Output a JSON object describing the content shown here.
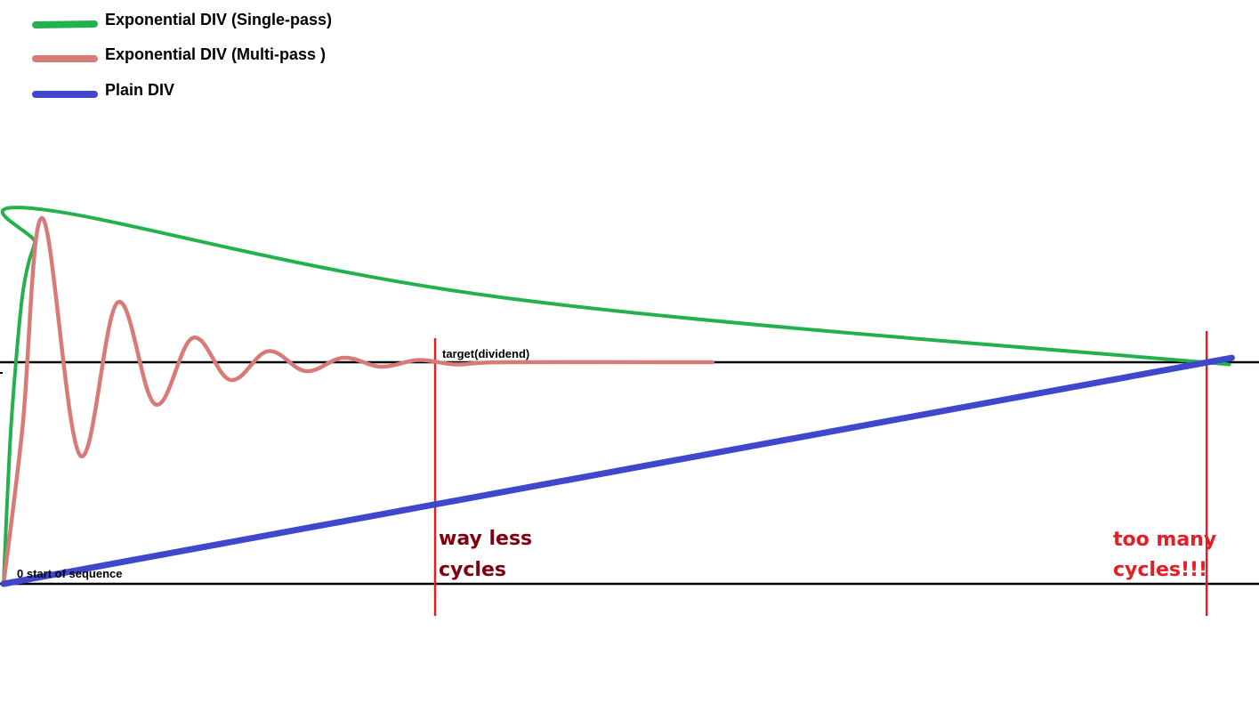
{
  "chart_data": {
    "type": "line",
    "title": "",
    "xlabel": "",
    "ylabel": "",
    "grid": false,
    "legend_position": "top-left",
    "xlim": [
      0,
      100
    ],
    "ylim": [
      0,
      1.6
    ],
    "colors": {
      "single_pass": "#22b14c",
      "multi_pass": "#d87a78",
      "plain": "#3f48cc",
      "axis": "#000000",
      "marker": "#e02020",
      "annotation_left": "#800010",
      "annotation_right": "#e81c24"
    },
    "series": [
      {
        "name": "Exponential DIV (Single-pass)",
        "key": "single_pass",
        "x": [
          0,
          0.5,
          1,
          1.5,
          2,
          2.5,
          3,
          40,
          97.7
        ],
        "y": [
          0.0,
          0.62,
          1.01,
          1.3,
          1.45,
          1.54,
          1.69,
          1.29,
          0.99
        ]
      },
      {
        "name": "Exponential DIV (Multi-pass  )",
        "key": "multi_pass",
        "x": [
          0,
          1.5,
          3.1,
          6.1,
          9.1,
          12.1,
          15.1,
          18.1,
          21.1,
          24.1,
          27.1,
          30.1,
          33.1,
          36.1,
          40.0,
          56.5
        ],
        "y": [
          0.0,
          0.7,
          1.65,
          0.58,
          1.27,
          0.81,
          1.11,
          0.92,
          1.05,
          0.96,
          1.02,
          0.98,
          1.01,
          0.99,
          1.0,
          1.0
        ]
      },
      {
        "name": "Plain DIV",
        "key": "plain",
        "x": [
          0,
          97.9
        ],
        "y": [
          0.0,
          1.02
        ]
      }
    ],
    "annotations": {
      "target_label": "target(dividend)",
      "zero_label": "0 start of sequence",
      "left_marker_x": 34.4,
      "right_marker_x": 95.9,
      "left_note_line1": "way less",
      "left_note_line2": "cycles",
      "right_note_line1": "too many",
      "right_note_line2": "cycles!!!",
      "target_y": 1.0,
      "zero_y": 0.0
    }
  }
}
